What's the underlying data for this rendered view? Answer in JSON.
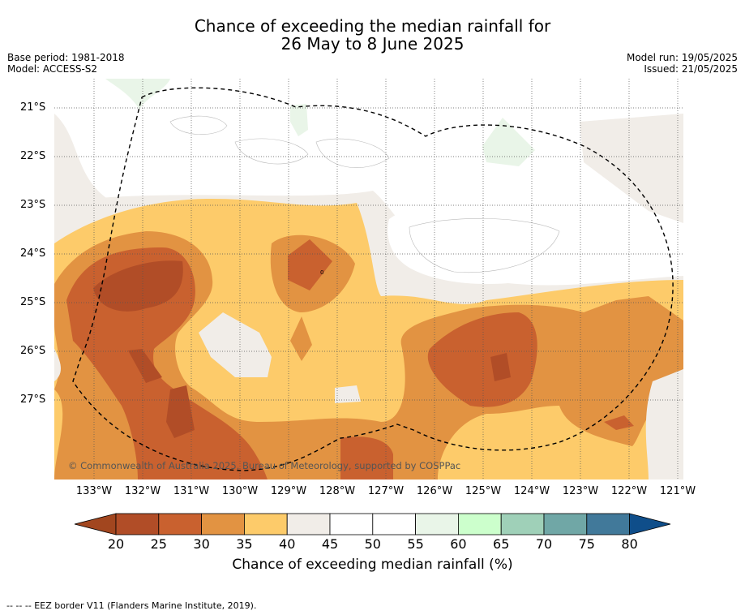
{
  "title_line1": "Chance of exceeding the median rainfall for",
  "title_line2": "26 May to 8 June 2025",
  "base_period": "Base period: 1981-2018",
  "model": "Model: ACCESS-S2",
  "model_run": "Model run: 19/05/2025",
  "issued": "Issued: 21/05/2025",
  "copyright": "© Commonwealth of Australia 2025, Bureau of Meteorology, supported by COSPPac",
  "lat_labels": [
    "21°S",
    "22°S",
    "23°S",
    "24°S",
    "25°S",
    "26°S",
    "27°S"
  ],
  "lon_labels": [
    "133°W",
    "132°W",
    "131°W",
    "130°W",
    "129°W",
    "128°W",
    "127°W",
    "126°W",
    "125°W",
    "124°W",
    "123°W",
    "122°W",
    "121°W"
  ],
  "colorbar": {
    "title": "Chance of exceeding median rainfall (%)",
    "ticks": [
      "20",
      "25",
      "30",
      "35",
      "40",
      "45",
      "50",
      "55",
      "60",
      "65",
      "70",
      "75",
      "80"
    ],
    "colors": [
      "#a2461f",
      "#b14d27",
      "#c9612f",
      "#e29342",
      "#fdcb6a",
      "#f1ede8",
      "#ffffff",
      "#ffffff",
      "#e9f5e8",
      "#ccffcc",
      "#9fd0b8",
      "#70a7a6",
      "#41799a",
      "#0f4e8a"
    ]
  },
  "footnote": "--  --  -- EEZ border V11 (Flanders Marine Institute, 2019)."
}
